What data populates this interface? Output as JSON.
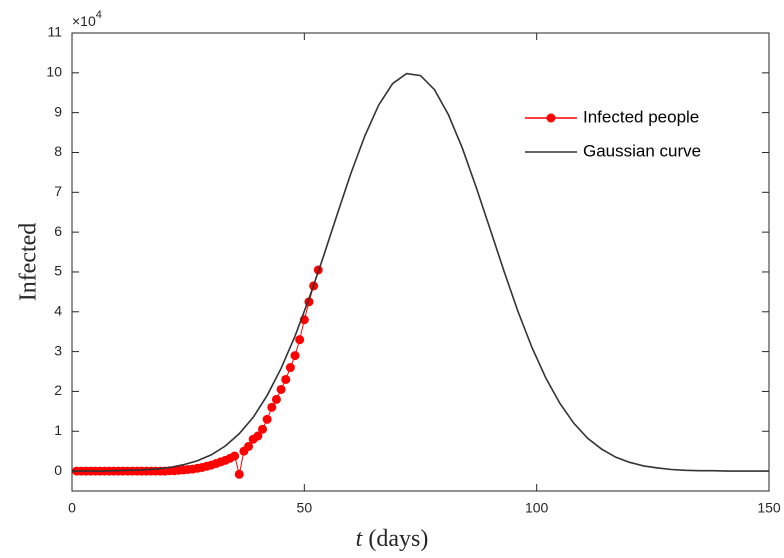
{
  "chart_data": {
    "type": "line",
    "xlabel": [
      "t",
      "(days)"
    ],
    "ylabel": "Infected",
    "y_multiplier": {
      "base": "×10",
      "exponent": "4"
    },
    "xlim": [
      0,
      150
    ],
    "xticks": [
      0,
      50,
      100,
      150
    ],
    "ylim": [
      -0.5,
      11
    ],
    "yticks": [
      0,
      1,
      2,
      3,
      4,
      5,
      6,
      7,
      8,
      9,
      10,
      11
    ],
    "grid": false,
    "legend_position": "northeast",
    "series": [
      {
        "name": "Infected people",
        "color": "#ff0000",
        "marker": "circle",
        "x": [
          1,
          2,
          3,
          4,
          5,
          6,
          7,
          8,
          9,
          10,
          11,
          12,
          13,
          14,
          15,
          16,
          17,
          18,
          19,
          20,
          21,
          22,
          23,
          24,
          25,
          26,
          27,
          28,
          29,
          30,
          31,
          32,
          33,
          34,
          35,
          36,
          37,
          38,
          39,
          40,
          41,
          42,
          43,
          44,
          45,
          46,
          47,
          48,
          49,
          50,
          51,
          52,
          53
        ],
        "values": [
          0,
          0,
          0,
          0,
          0,
          0,
          0,
          0,
          0,
          0,
          0,
          0,
          0,
          0,
          0,
          0,
          0,
          0,
          0,
          0,
          0.01,
          0.01,
          0.02,
          0.03,
          0.04,
          0.05,
          0.07,
          0.09,
          0.12,
          0.15,
          0.19,
          0.23,
          0.27,
          0.32,
          0.38,
          -0.08,
          0.5,
          0.62,
          0.8,
          0.88,
          1.05,
          1.3,
          1.6,
          1.8,
          2.05,
          2.3,
          2.6,
          2.9,
          3.3,
          3.8,
          4.25,
          4.65,
          5.05
        ]
      },
      {
        "name": "Gaussian curve",
        "color": "#333333",
        "marker": "none",
        "x": [
          0,
          3,
          6,
          9,
          12,
          15,
          18,
          21,
          24,
          27,
          30,
          33,
          36,
          39,
          42,
          45,
          48,
          51,
          54,
          57,
          60,
          63,
          66,
          69,
          72,
          75,
          78,
          81,
          84,
          87,
          90,
          93,
          96,
          99,
          102,
          105,
          108,
          111,
          114,
          117,
          120,
          123,
          126,
          129,
          132,
          135,
          138,
          141,
          144,
          147,
          150
        ],
        "values": [
          0,
          0,
          0,
          0.01,
          0.02,
          0.03,
          0.05,
          0.09,
          0.16,
          0.26,
          0.41,
          0.63,
          0.94,
          1.35,
          1.9,
          2.58,
          3.39,
          4.33,
          5.35,
          6.42,
          7.47,
          8.41,
          9.19,
          9.73,
          9.98,
          9.93,
          9.58,
          8.95,
          8.11,
          7.12,
          6.07,
          5.01,
          4.0,
          3.1,
          2.33,
          1.7,
          1.2,
          0.82,
          0.55,
          0.35,
          0.22,
          0.13,
          0.08,
          0.04,
          0.02,
          0.01,
          0.01,
          0,
          0,
          0,
          0
        ]
      }
    ]
  }
}
